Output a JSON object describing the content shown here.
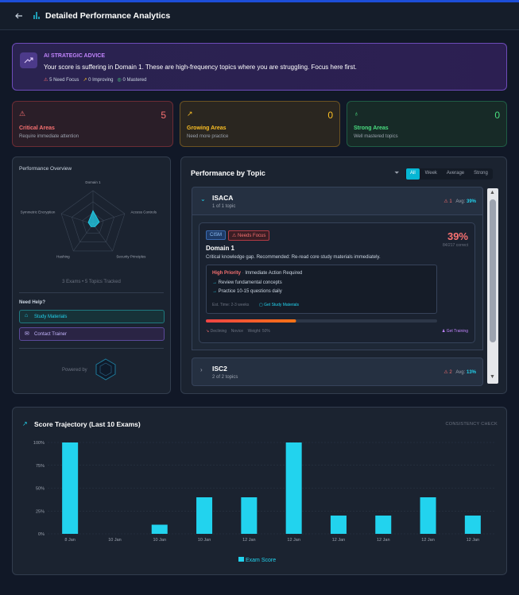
{
  "header": {
    "title": "Detailed Performance Analytics"
  },
  "advice": {
    "label": "AI STRATEGIC ADVICE",
    "text": "Your score is suffering in Domain 1. These are high-frequency topics where you are struggling. Focus here first.",
    "stats": [
      "5 Need Focus",
      "0 Improving",
      "0 Mastered"
    ]
  },
  "summary_cards": [
    {
      "value": 5,
      "title": "Critical Areas",
      "subtitle": "Require immediate attention"
    },
    {
      "value": 0,
      "title": "Growing Areas",
      "subtitle": "Need more practice"
    },
    {
      "value": 0,
      "title": "Strong Areas",
      "subtitle": "Well mastered topics"
    }
  ],
  "overview": {
    "title": "Performance Overview",
    "radar": {
      "type": "radar",
      "axes": [
        "Domain 1",
        "Access Controls",
        "Security Principles",
        "Hashing",
        "Symmetric Encryption"
      ],
      "values": [
        40,
        20,
        10,
        10,
        15
      ],
      "rlim": [
        0,
        100
      ],
      "color": "#22d3ee"
    },
    "footnote": "3 Exams • 5 Topics Tracked",
    "help_title": "Need Help?",
    "buttons": [
      "Study Materials",
      "Contact Trainer"
    ],
    "powered_by": "Powered by"
  },
  "topics": {
    "title": "Performance by Topic",
    "filters": [
      "All",
      "Week",
      "Average",
      "Strong"
    ],
    "active_filter": "All",
    "groups": [
      {
        "name": "ISACA",
        "subtitle": "1 of 1 topic",
        "count": "1",
        "avg_label": "Avg:",
        "avg": "39%"
      },
      {
        "name": "ISC2",
        "subtitle": "2 of 2 topics",
        "count": "2",
        "avg_label": "Avg:",
        "avg": "13%"
      }
    ],
    "detail": {
      "tags": [
        "CISM",
        "Needs Focus"
      ],
      "score": "39%",
      "correct": "84/217 correct",
      "name": "Domain 1",
      "description": "Critical knowledge gap. Recommended: Re-read core study materials immediately.",
      "priority": "High Priority",
      "priority_note": "Immediate Action Required",
      "actions": [
        "Review fundamental concepts",
        "Practice 10-15 questions daily"
      ],
      "est_time": "Est. Time: 2-3 weeks",
      "study_link": "Get Study Materials",
      "progress": 39,
      "trend": "Declining",
      "level": "Novice",
      "weight": "Weight: 50%",
      "training_link": "Get Training"
    }
  },
  "chart_data": {
    "type": "bar",
    "title": "Score Trajectory (Last 10 Exams)",
    "note": "CONSISTENCY CHECK",
    "categories": [
      "8 Jan",
      "10 Jan",
      "10 Jan",
      "10 Jan",
      "12 Jan",
      "12 Jan",
      "12 Jan",
      "12 Jan",
      "12 Jan",
      "12 Jan"
    ],
    "series": [
      {
        "name": "Exam Score",
        "color": "#22d3ee",
        "values": [
          100,
          0,
          10,
          40,
          40,
          100,
          20,
          20,
          40,
          20
        ]
      }
    ],
    "ylim": [
      0,
      100
    ],
    "yticks": [
      {
        "value": 0,
        "label": "0%"
      },
      {
        "value": 25,
        "label": "25%"
      },
      {
        "value": 50,
        "label": "50%"
      },
      {
        "value": 75,
        "label": "75%"
      },
      {
        "value": 100,
        "label": "100%"
      }
    ],
    "grid": true
  }
}
